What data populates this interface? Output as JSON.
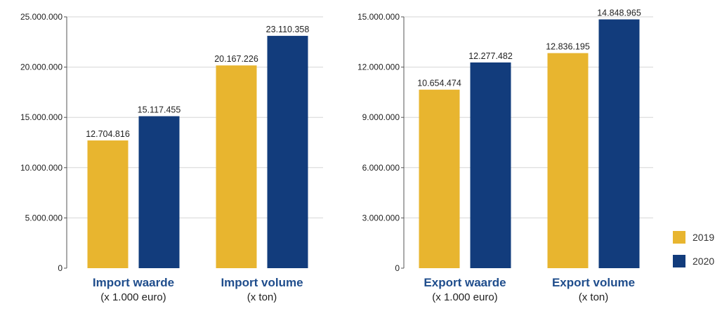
{
  "colors": {
    "y2019": "#e8b52f",
    "y2020": "#123c7c",
    "category_text": "#1f4d8c",
    "grid": "#d6d6d6",
    "axis": "#555555"
  },
  "legend": {
    "position": "right",
    "items": [
      {
        "label": "2019",
        "color": "#e8b52f"
      },
      {
        "label": "2020",
        "color": "#123c7c"
      }
    ]
  },
  "chart_data": [
    {
      "type": "bar",
      "grid": true,
      "ylim": [
        0,
        25000000
      ],
      "yticks": [
        0,
        5000000,
        10000000,
        15000000,
        20000000,
        25000000
      ],
      "ytick_labels": [
        "0",
        "5.000.000",
        "10.000.000",
        "15.000.000",
        "20.000.000",
        "25.000.000"
      ],
      "categories": [
        {
          "title": "Import waarde",
          "subtitle": "(x 1.000 euro)"
        },
        {
          "title": "Import volume",
          "subtitle": "(x ton)"
        }
      ],
      "series": [
        {
          "name": "2019",
          "values": [
            12704816,
            20167226
          ],
          "labels": [
            "12.704.816",
            "20.167.226"
          ]
        },
        {
          "name": "2020",
          "values": [
            15117455,
            23110358
          ],
          "labels": [
            "15.117.455",
            "23.110.358"
          ]
        }
      ]
    },
    {
      "type": "bar",
      "grid": true,
      "ylim": [
        0,
        15000000
      ],
      "yticks": [
        0,
        3000000,
        6000000,
        9000000,
        12000000,
        15000000
      ],
      "ytick_labels": [
        "0",
        "3.000.000",
        "6.000.000",
        "9.000.000",
        "12.000.000",
        "15.000.000"
      ],
      "categories": [
        {
          "title": "Export waarde",
          "subtitle": "(x 1.000 euro)"
        },
        {
          "title": "Export volume",
          "subtitle": "(x ton)"
        }
      ],
      "series": [
        {
          "name": "2019",
          "values": [
            10654474,
            12836195
          ],
          "labels": [
            "10.654.474",
            "12.836.195"
          ]
        },
        {
          "name": "2020",
          "values": [
            12277482,
            14848965
          ],
          "labels": [
            "12.277.482",
            "14.848.965"
          ]
        }
      ]
    }
  ]
}
